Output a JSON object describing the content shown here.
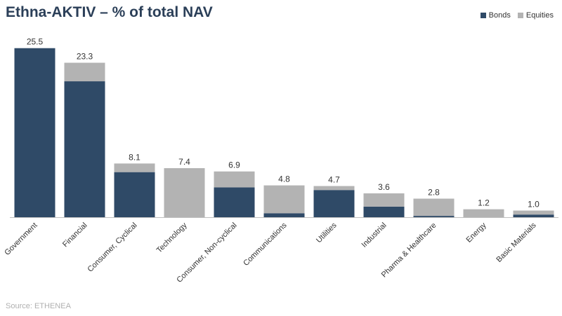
{
  "chart_data": {
    "type": "bar",
    "stacked": true,
    "title": "Ethna-AKTIV – % of total NAV",
    "source": "Source: ETHENEA",
    "legend_placement": "top-right",
    "categories": [
      "Government",
      "Financial",
      "Consumer, Cyclical",
      "Technology",
      "Consumer, Non-cyclical",
      "Communications",
      "Utilities",
      "Industrial",
      "Pharma & Healthcare",
      "Energy",
      "Basic Materials"
    ],
    "totals": [
      "25.5",
      "23.3",
      "8.1",
      "7.4",
      "6.9",
      "4.8",
      "4.7",
      "3.6",
      "2.8",
      "1.2",
      "1.0"
    ],
    "series": [
      {
        "name": "Bonds",
        "color": "#2f4a67",
        "values": [
          25.5,
          20.5,
          6.8,
          0.0,
          4.5,
          0.6,
          4.1,
          1.6,
          0.2,
          0.0,
          0.4
        ]
      },
      {
        "name": "Equities",
        "color": "#b3b3b3",
        "values": [
          0.0,
          2.8,
          1.3,
          7.4,
          2.4,
          4.2,
          0.6,
          2.0,
          2.6,
          1.2,
          0.6
        ]
      }
    ],
    "ylim": [
      0,
      26
    ],
    "grid": false
  }
}
